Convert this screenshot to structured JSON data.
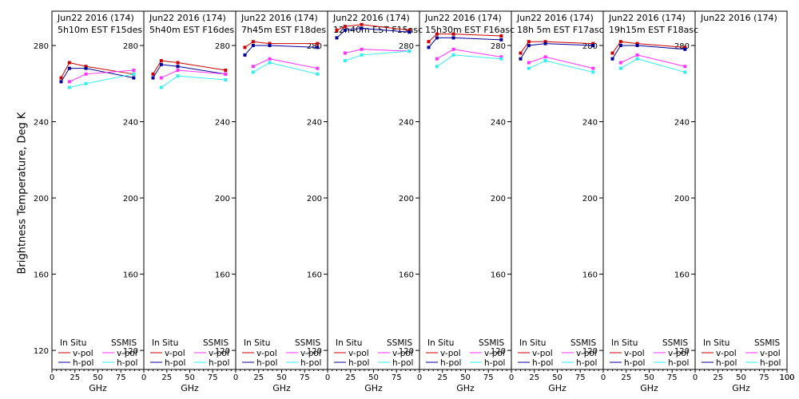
{
  "figure": {
    "ylabel": "Brightness Temperature, Deg K"
  },
  "chart_data": [
    {
      "type": "line",
      "title": "Jun22 2016 (174)",
      "subtitle": "5h10m EST F15des",
      "xlabel": "GHz",
      "x_ticks": [
        "0",
        "25",
        "50",
        "75",
        "100"
      ],
      "y_ticks": [
        "120",
        "160",
        "200",
        "240",
        "280"
      ],
      "xlim": [
        0,
        100
      ],
      "ylim": [
        110,
        298
      ],
      "legend": {
        "left_title": "In Situ",
        "right_title": "SSMIS",
        "v": "v-pol",
        "h": "h-pol"
      },
      "series": [
        {
          "name": "v-pol",
          "x": [
            10,
            19,
            37,
            89
          ],
          "values": [
            263,
            271,
            269,
            265
          ]
        },
        {
          "name": "h-pol",
          "x": [
            10,
            19,
            37,
            89
          ],
          "values": [
            261,
            268,
            268,
            263
          ]
        },
        {
          "name": "v-pol",
          "x": [
            19,
            37,
            89
          ],
          "values": [
            261,
            265,
            267
          ]
        },
        {
          "name": "h-pol",
          "x": [
            19,
            37,
            89
          ],
          "values": [
            258,
            260,
            265
          ]
        }
      ]
    },
    {
      "type": "line",
      "title": "Jun22 2016 (174)",
      "subtitle": "5h40m EST F16des",
      "xlabel": "GHz",
      "x_ticks": [
        "0",
        "25",
        "50",
        "75",
        "100"
      ],
      "y_ticks": [
        "120",
        "160",
        "200",
        "240",
        "280"
      ],
      "xlim": [
        0,
        100
      ],
      "ylim": [
        110,
        298
      ],
      "legend": {
        "left_title": "In Situ",
        "right_title": "SSMIS",
        "v": "v-pol",
        "h": "h-pol"
      },
      "series": [
        {
          "name": "v-pol",
          "x": [
            10,
            19,
            37,
            89
          ],
          "values": [
            265,
            272,
            271,
            267
          ]
        },
        {
          "name": "h-pol",
          "x": [
            10,
            19,
            37,
            89
          ],
          "values": [
            263,
            270,
            269,
            265
          ]
        },
        {
          "name": "v-pol",
          "x": [
            19,
            37,
            89
          ],
          "values": [
            263,
            267,
            265
          ]
        },
        {
          "name": "h-pol",
          "x": [
            19,
            37,
            89
          ],
          "values": [
            258,
            264,
            262
          ]
        }
      ]
    },
    {
      "type": "line",
      "title": "Jun22 2016 (174)",
      "subtitle": "7h45m EST F18des",
      "xlabel": "GHz",
      "x_ticks": [
        "0",
        "25",
        "50",
        "75",
        "100"
      ],
      "y_ticks": [
        "120",
        "160",
        "200",
        "240",
        "280"
      ],
      "xlim": [
        0,
        100
      ],
      "ylim": [
        110,
        298
      ],
      "legend": {
        "left_title": "In Situ",
        "right_title": "SSMIS",
        "v": "v-pol",
        "h": "h-pol"
      },
      "series": [
        {
          "name": "v-pol",
          "x": [
            10,
            19,
            37,
            89
          ],
          "values": [
            279,
            282,
            281,
            281
          ]
        },
        {
          "name": "h-pol",
          "x": [
            10,
            19,
            37,
            89
          ],
          "values": [
            275,
            280,
            280,
            279
          ]
        },
        {
          "name": "v-pol",
          "x": [
            19,
            37,
            89
          ],
          "values": [
            269,
            273,
            268
          ]
        },
        {
          "name": "h-pol",
          "x": [
            19,
            37,
            89
          ],
          "values": [
            266,
            271,
            265
          ]
        }
      ]
    },
    {
      "type": "line",
      "title": "Jun22 2016 (174)",
      "subtitle": "12h40m EST F15asc",
      "xlabel": "GHz",
      "x_ticks": [
        "0",
        "25",
        "50",
        "75",
        "100"
      ],
      "y_ticks": [
        "120",
        "160",
        "200",
        "240",
        "280"
      ],
      "xlim": [
        0,
        100
      ],
      "ylim": [
        110,
        298
      ],
      "legend": {
        "left_title": "In Situ",
        "right_title": "SSMIS",
        "v": "v-pol",
        "h": "h-pol"
      },
      "series": [
        {
          "name": "v-pol",
          "x": [
            10,
            19,
            37,
            89
          ],
          "values": [
            288,
            290,
            291,
            288
          ]
        },
        {
          "name": "h-pol",
          "x": [
            10,
            19,
            37,
            89
          ],
          "values": [
            284,
            288,
            289,
            287
          ]
        },
        {
          "name": "v-pol",
          "x": [
            19,
            37,
            89
          ],
          "values": [
            276,
            278,
            277
          ]
        },
        {
          "name": "h-pol",
          "x": [
            19,
            37,
            89
          ],
          "values": [
            272,
            275,
            277
          ]
        }
      ]
    },
    {
      "type": "line",
      "title": "Jun22 2016 (174)",
      "subtitle": "15h30m EST F16asc",
      "xlabel": "GHz",
      "x_ticks": [
        "0",
        "25",
        "50",
        "75",
        "100"
      ],
      "y_ticks": [
        "120",
        "160",
        "200",
        "240",
        "280"
      ],
      "xlim": [
        0,
        100
      ],
      "ylim": [
        110,
        298
      ],
      "legend": {
        "left_title": "In Situ",
        "right_title": "SSMIS",
        "v": "v-pol",
        "h": "h-pol"
      },
      "series": [
        {
          "name": "v-pol",
          "x": [
            10,
            19,
            37,
            89
          ],
          "values": [
            282,
            286,
            286,
            285
          ]
        },
        {
          "name": "h-pol",
          "x": [
            10,
            19,
            37,
            89
          ],
          "values": [
            279,
            284,
            284,
            283
          ]
        },
        {
          "name": "v-pol",
          "x": [
            19,
            37,
            89
          ],
          "values": [
            273,
            278,
            274
          ]
        },
        {
          "name": "h-pol",
          "x": [
            19,
            37,
            89
          ],
          "values": [
            269,
            275,
            273
          ]
        }
      ]
    },
    {
      "type": "line",
      "title": "Jun22 2016 (174)",
      "subtitle": "18h 5m EST F17asc",
      "xlabel": "GHz",
      "x_ticks": [
        "0",
        "25",
        "50",
        "75",
        "100"
      ],
      "y_ticks": [
        "120",
        "160",
        "200",
        "240",
        "280"
      ],
      "xlim": [
        0,
        100
      ],
      "ylim": [
        110,
        298
      ],
      "legend": {
        "left_title": "In Situ",
        "right_title": "SSMIS",
        "v": "v-pol",
        "h": "h-pol"
      },
      "series": [
        {
          "name": "v-pol",
          "x": [
            10,
            19,
            37,
            89
          ],
          "values": [
            276,
            282,
            282,
            281
          ]
        },
        {
          "name": "h-pol",
          "x": [
            10,
            19,
            37,
            89
          ],
          "values": [
            273,
            280,
            281,
            280
          ]
        },
        {
          "name": "v-pol",
          "x": [
            19,
            37,
            89
          ],
          "values": [
            271,
            274,
            268
          ]
        },
        {
          "name": "h-pol",
          "x": [
            19,
            37,
            89
          ],
          "values": [
            268,
            272,
            266
          ]
        }
      ]
    },
    {
      "type": "line",
      "title": "Jun22 2016 (174)",
      "subtitle": "19h15m EST F18asc",
      "xlabel": "GHz",
      "x_ticks": [
        "0",
        "25",
        "50",
        "75",
        "100"
      ],
      "y_ticks": [
        "120",
        "160",
        "200",
        "240",
        "280"
      ],
      "xlim": [
        0,
        100
      ],
      "ylim": [
        110,
        298
      ],
      "legend": {
        "left_title": "In Situ",
        "right_title": "SSMIS",
        "v": "v-pol",
        "h": "h-pol"
      },
      "series": [
        {
          "name": "v-pol",
          "x": [
            10,
            19,
            37,
            89
          ],
          "values": [
            276,
            282,
            281,
            279
          ]
        },
        {
          "name": "h-pol",
          "x": [
            10,
            19,
            37,
            89
          ],
          "values": [
            273,
            280,
            280,
            278
          ]
        },
        {
          "name": "v-pol",
          "x": [
            19,
            37,
            89
          ],
          "values": [
            271,
            275,
            269
          ]
        },
        {
          "name": "h-pol",
          "x": [
            19,
            37,
            89
          ],
          "values": [
            268,
            273,
            266
          ]
        }
      ]
    },
    {
      "type": "line",
      "title": "Jun22 2016 (174)",
      "subtitle": "",
      "xlabel": "GHz",
      "x_ticks": [
        "0",
        "25",
        "50",
        "75",
        "100"
      ],
      "y_ticks": [],
      "xlim": [
        0,
        100
      ],
      "ylim": [
        110,
        298
      ],
      "legend": {
        "left_title": "In Situ",
        "right_title": "SSMIS",
        "v": "v-pol",
        "h": "h-pol"
      },
      "series": []
    }
  ],
  "colors": {
    "insitu_v": "#cc0000",
    "insitu_h": "#000099",
    "ssmis_v": "#ff33ff",
    "ssmis_h": "#33eeee",
    "axis": "#000000"
  }
}
